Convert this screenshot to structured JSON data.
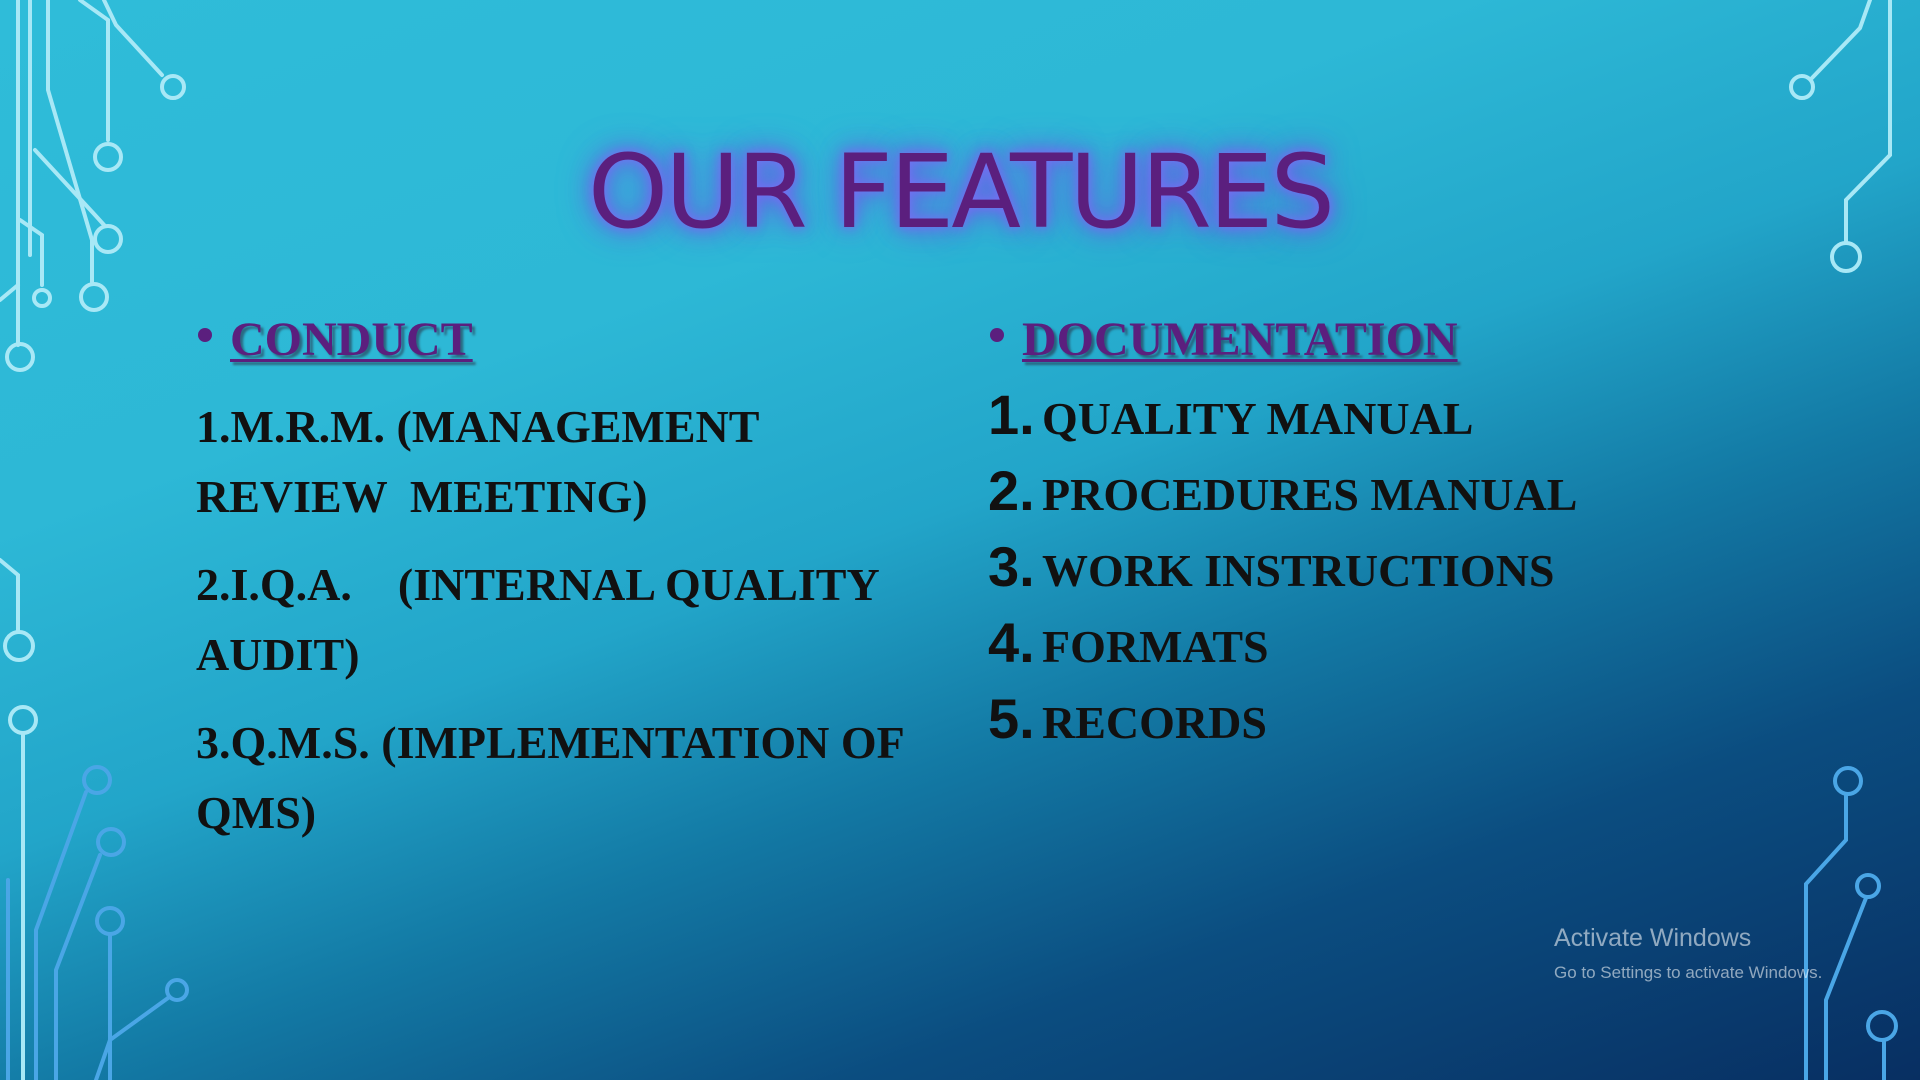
{
  "slide": {
    "title": "OUR FEATURES",
    "left": {
      "heading": "CONDUCT",
      "items": [
        "1.M.R.M. (MANAGEMENT REVIEW  MEETING)",
        "2.I.Q.A.    (INTERNAL QUALITY AUDIT)",
        "3.Q.M.S. (IMPLEMENTATION OF QMS)"
      ]
    },
    "right": {
      "heading": "DOCUMENTATION",
      "items": [
        {
          "num": "1.",
          "text": "QUALITY MANUAL"
        },
        {
          "num": "2.",
          "text": "PROCEDURES MANUAL"
        },
        {
          "num": "3.",
          "text": "WORK INSTRUCTIONS"
        },
        {
          "num": "4.",
          "text": "FORMATS"
        },
        {
          "num": "5.",
          "text": "RECORDS"
        }
      ]
    }
  },
  "watermark": {
    "title": "Activate Windows",
    "subtitle": "Go to Settings to activate Windows."
  },
  "colors": {
    "title": "#5b1f7e",
    "heading": "#5b1f7e",
    "body_text": "#111111",
    "circuit_light": "#9ee6f5",
    "circuit_blue": "#4aa6e6"
  }
}
